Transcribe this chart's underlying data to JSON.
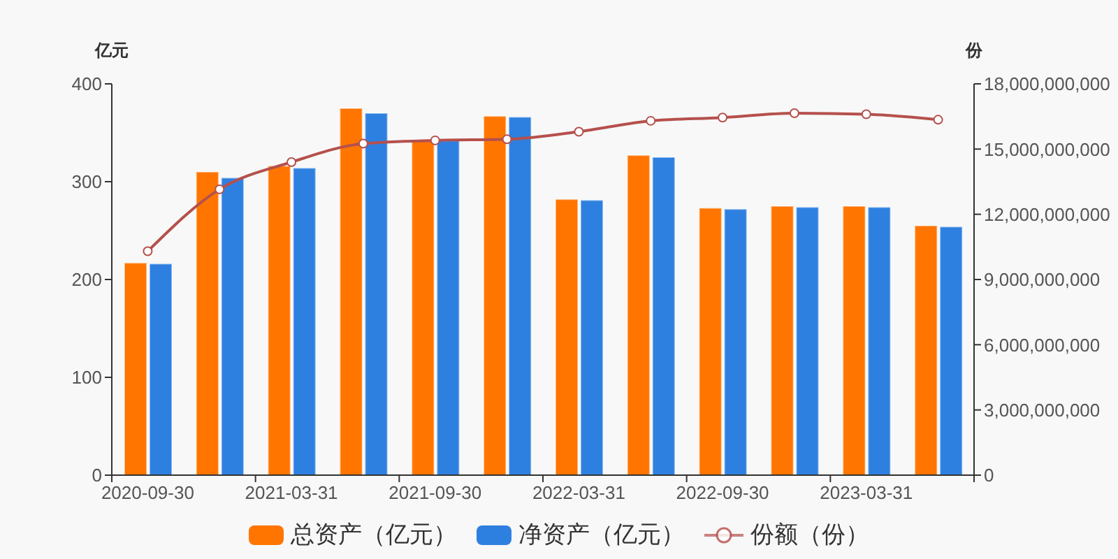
{
  "chart_data": {
    "type": "bar",
    "ylabel": "亿元",
    "y2label": "份",
    "categories": [
      "2020-09-30",
      null,
      "2021-03-31",
      null,
      "2021-09-30",
      null,
      "2022-03-31",
      null,
      "2022-09-30",
      null,
      "2023-03-31",
      null
    ],
    "series": [
      {
        "name": "总资产（亿元）",
        "color": "#ff7500",
        "values": [
          217,
          310,
          316,
          375,
          342,
          367,
          282,
          327,
          273,
          275,
          275,
          255
        ]
      },
      {
        "name": "净资产（亿元）",
        "color": "#2e80e0",
        "values": [
          216,
          304,
          314,
          370,
          342,
          366,
          281,
          325,
          272,
          274,
          274,
          254
        ]
      },
      {
        "name": "份额（份）",
        "type": "line",
        "axis": "y2",
        "color": "#b5504c",
        "marker": "circle",
        "line_style": "solid",
        "values": [
          10300000000,
          13150000000,
          14400000000,
          15250000000,
          15400000000,
          15450000000,
          15800000000,
          16300000000,
          16450000000,
          16650000000,
          16600000000,
          16350000000
        ]
      }
    ],
    "ylim": [
      0,
      400
    ],
    "yticks": [
      0,
      100,
      200,
      300,
      400
    ],
    "y2lim": [
      0,
      18000000000
    ],
    "y2ticks": [
      {
        "value": 0,
        "label": "0"
      },
      {
        "value": 3000000000,
        "label": "3,000,000,000"
      },
      {
        "value": 6000000000,
        "label": "6,000,000,000"
      },
      {
        "value": 9000000000,
        "label": "9,000,000,000"
      },
      {
        "value": 12000000000,
        "label": "12,000,000,000"
      },
      {
        "value": 15000000000,
        "label": "15,000,000,000"
      },
      {
        "value": 18000000000,
        "label": "18,000,000,000"
      }
    ],
    "legend": "bottom"
  }
}
